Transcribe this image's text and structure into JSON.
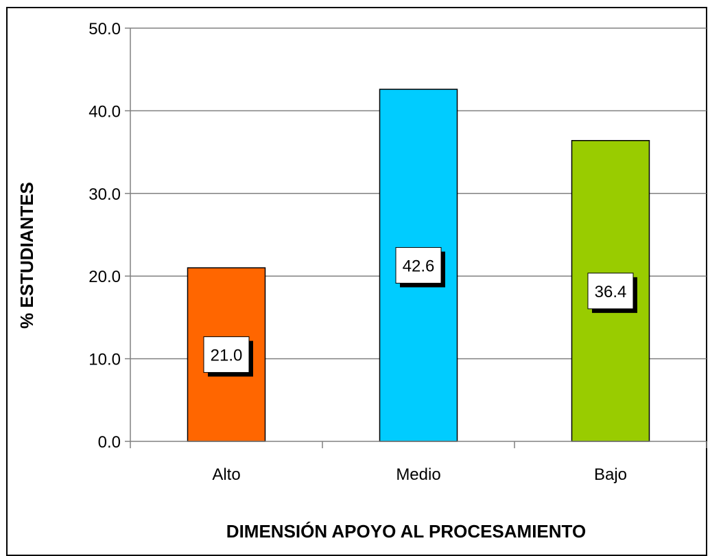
{
  "chart_data": {
    "type": "bar",
    "categories": [
      "Alto",
      "Medio",
      "Bajo"
    ],
    "values": [
      21.0,
      42.6,
      36.4
    ],
    "data_labels": [
      "21.0",
      "42.6",
      "36.4"
    ],
    "colors": [
      "#FF6600",
      "#00CCFF",
      "#99CC00"
    ],
    "xlabel": "DIMENSIÓN APOYO AL PROCESAMIENTO",
    "ylabel": "% ESTUDIANTES",
    "ylim": [
      0,
      50
    ],
    "yticks": [
      "0.0",
      "10.0",
      "20.0",
      "30.0",
      "40.0",
      "50.0"
    ],
    "grid": true,
    "legend": "none"
  }
}
